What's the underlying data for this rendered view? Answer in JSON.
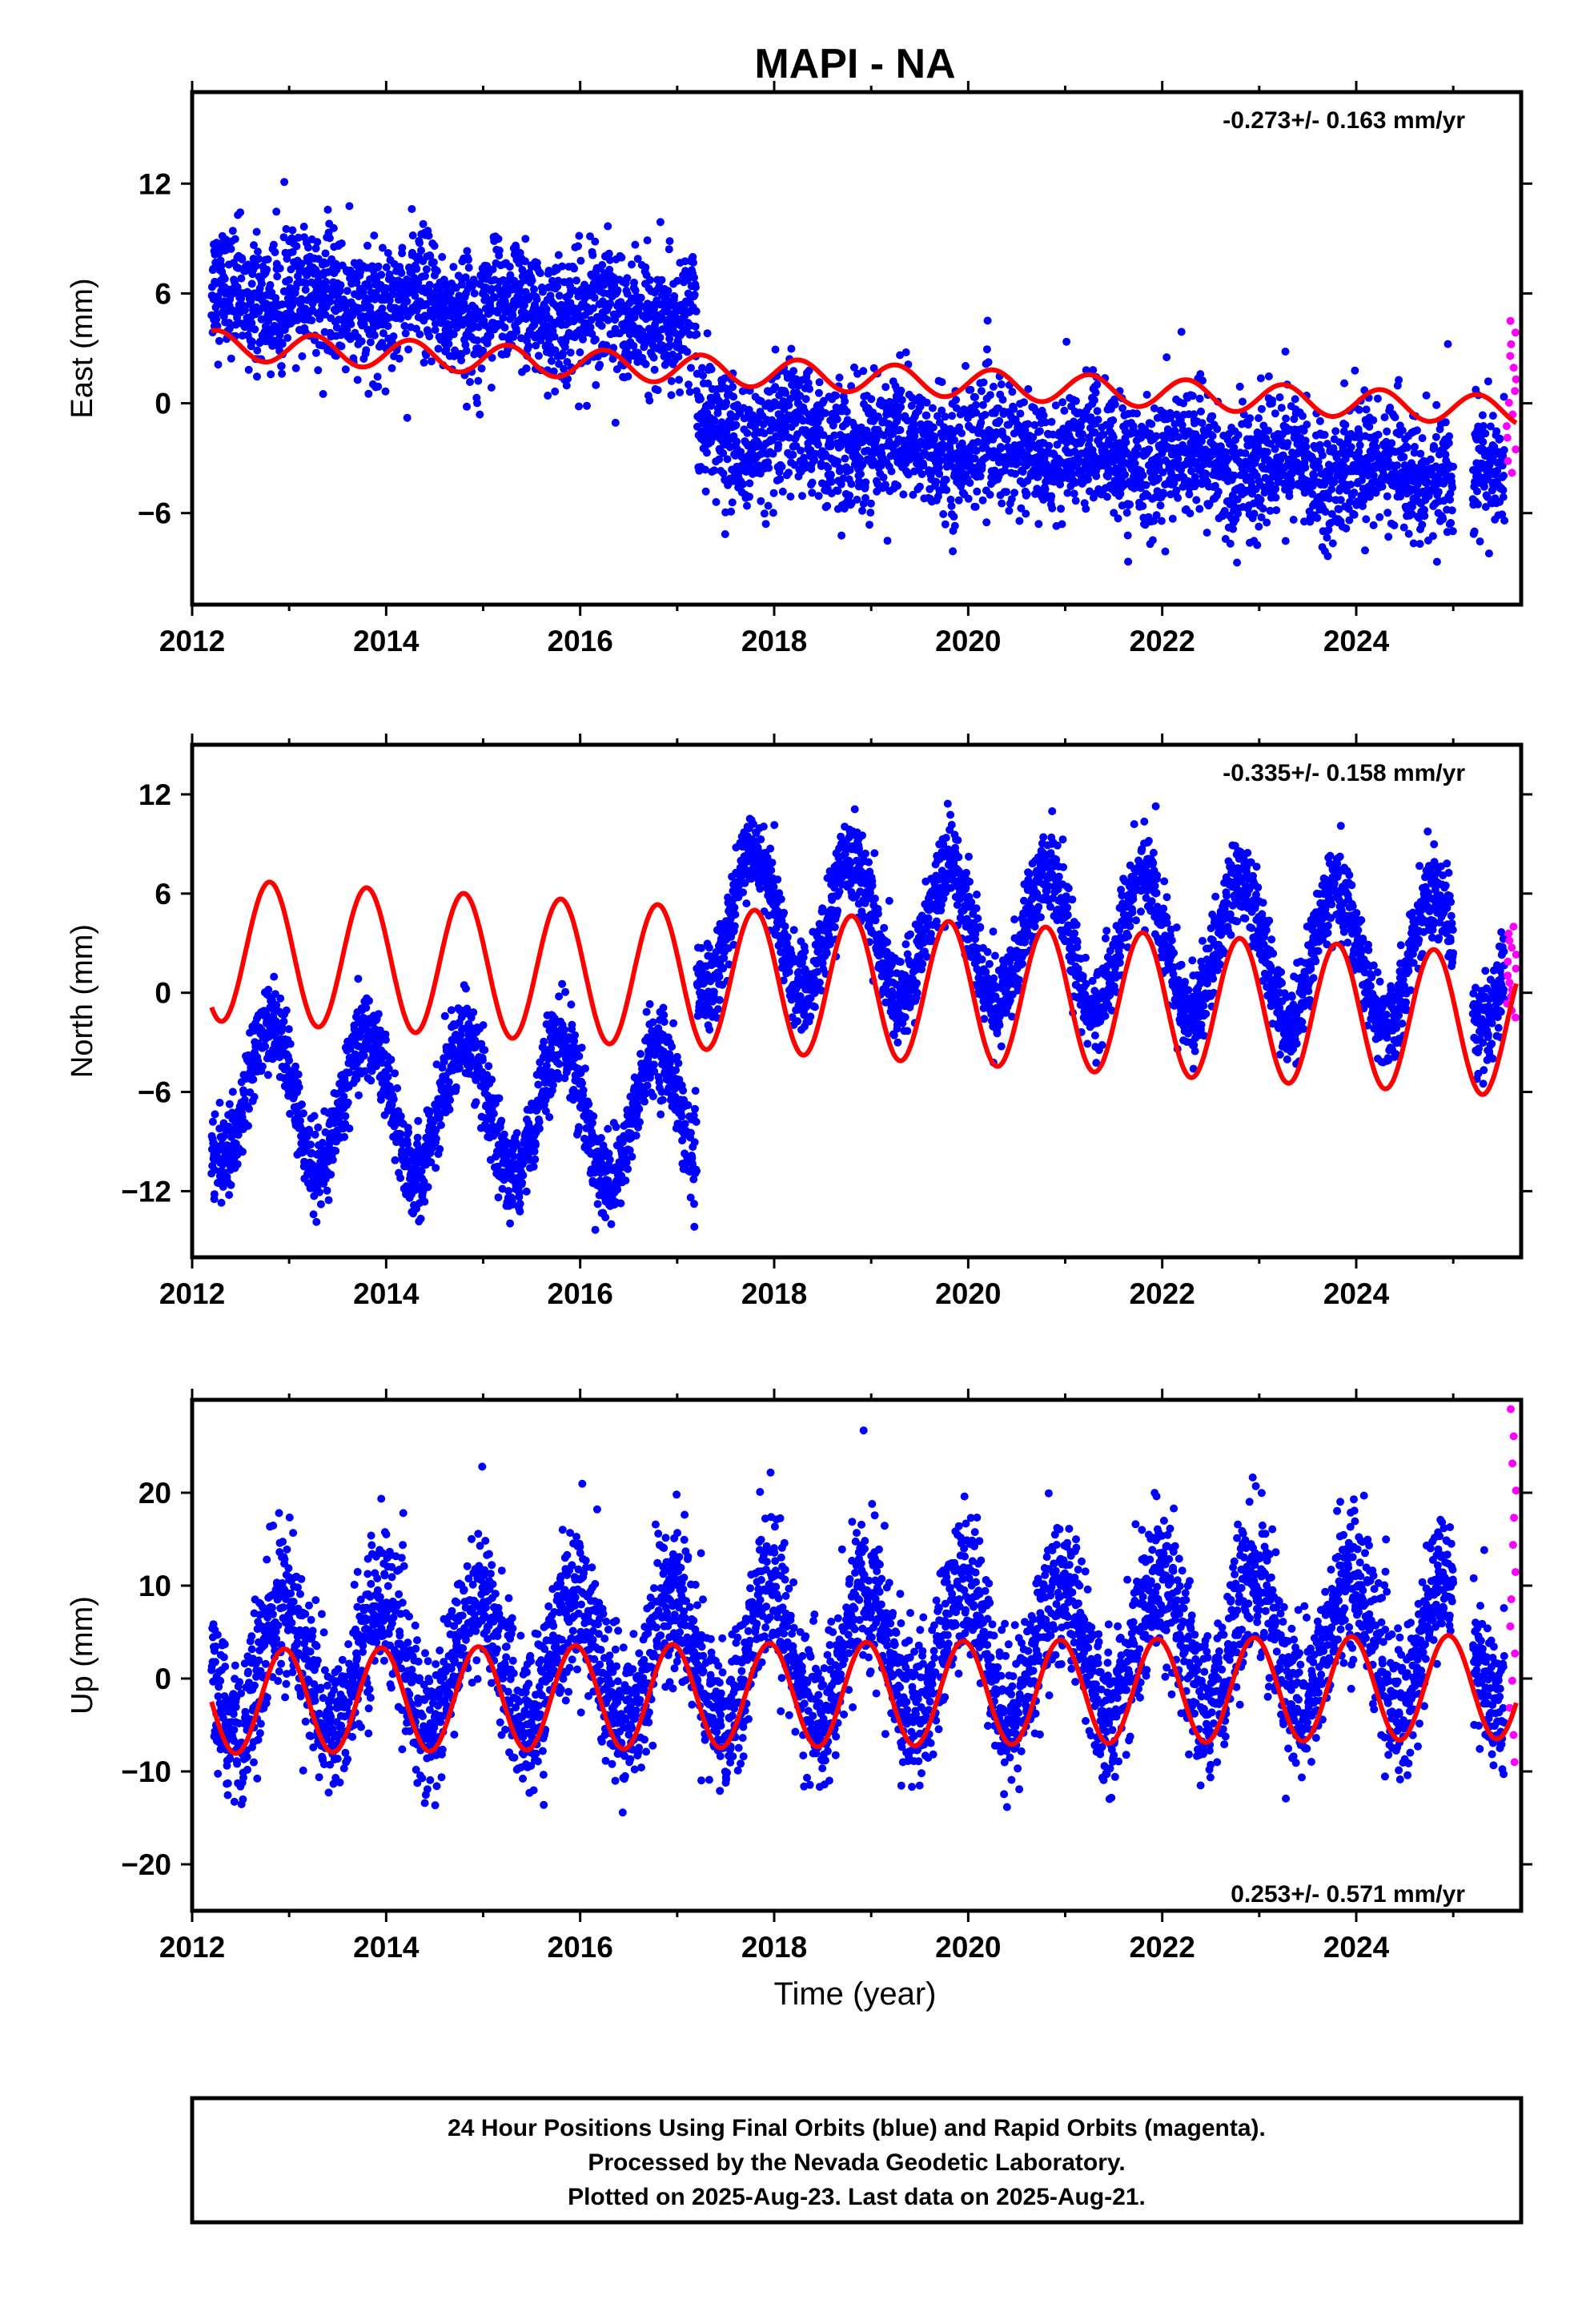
{
  "chart_data": {
    "type": "scatter",
    "title": "MAPI - NA",
    "xlabel": "Time (year)",
    "x_ticks": [
      "2012",
      "2014",
      "2016",
      "2018",
      "2020",
      "2022",
      "2024"
    ],
    "xlim": [
      2012.0,
      2025.7
    ],
    "colors": {
      "final": "#0000ff",
      "rapid": "#ff00ff",
      "model": "#ff0000"
    },
    "panels": [
      {
        "name": "east",
        "ylabel": "East (mm)",
        "ylim": [
          -11,
          17
        ],
        "y_ticks": [
          12,
          6,
          0,
          -6
        ],
        "rate": "-0.273+/- 0.163 mm/yr",
        "data_trend": {
          "start_2012": 6.0,
          "step_2017_2": -6.4,
          "slope_mm_per_yr": -0.27,
          "annual_amplitude": 0.6,
          "scatter_sd": 1.7
        },
        "model": {
          "t0": 2012.2,
          "intercept": 3.2,
          "step_2017_2": 0.0,
          "slope_mm_per_yr": -0.27,
          "annual_amplitude": 0.8,
          "annual_phase_frac": 0.0
        },
        "rapid": {
          "x_start": 2025.55,
          "x_end": 2025.65,
          "y_min": -3.8,
          "y_max": 4.5
        }
      },
      {
        "name": "north",
        "ylabel": "North (mm)",
        "ylim": [
          -16,
          15
        ],
        "y_ticks": [
          12,
          6,
          0,
          -6,
          -12
        ],
        "rate": "-0.335+/- 0.158 mm/yr",
        "data_trend": {
          "start_2012": -6.0,
          "step_2017_2": 12.2,
          "slope_mm_per_yr": -0.34,
          "annual_amplitude": 4.2,
          "scatter_sd": 1.3
        },
        "model": {
          "t0": 2012.2,
          "intercept": 2.6,
          "step_2017_2": 0.0,
          "slope_mm_per_yr": -0.34,
          "annual_amplitude": 4.3,
          "annual_phase_frac": 0.55
        },
        "rapid": {
          "x_start": 2025.55,
          "x_end": 2025.65,
          "y_min": -1.5,
          "y_max": 4.0
        }
      },
      {
        "name": "up",
        "ylabel": "Up (mm)",
        "ylim": [
          -25,
          30
        ],
        "y_ticks": [
          20,
          10,
          0,
          -10,
          -20
        ],
        "rate": "0.253+/- 0.571 mm/yr",
        "data_trend": {
          "start_2012": 1.0,
          "step_2017_2": 0.0,
          "slope_mm_per_yr": 0.25,
          "annual_amplitude": 7.0,
          "scatter_sd": 4.0
        },
        "model": {
          "t0": 2012.2,
          "intercept": -2.5,
          "step_2017_2": 0.0,
          "slope_mm_per_yr": 0.12,
          "annual_amplitude": 5.6,
          "annual_phase_frac": 0.7
        },
        "rapid": {
          "x_start": 2025.55,
          "x_end": 2025.65,
          "y_min": -9.0,
          "y_max": 29.0
        }
      }
    ],
    "data_range": {
      "x_start": 2012.2,
      "x_end": 2025.65,
      "gap_start": 2025.0,
      "gap_end": 2025.2
    }
  },
  "footer": {
    "line1": "24 Hour Positions Using Final Orbits (blue) and Rapid Orbits (magenta).",
    "line2": "Processed by the Nevada Geodetic Laboratory.",
    "line3": "Plotted on 2025-Aug-23. Last data on 2025-Aug-21."
  }
}
